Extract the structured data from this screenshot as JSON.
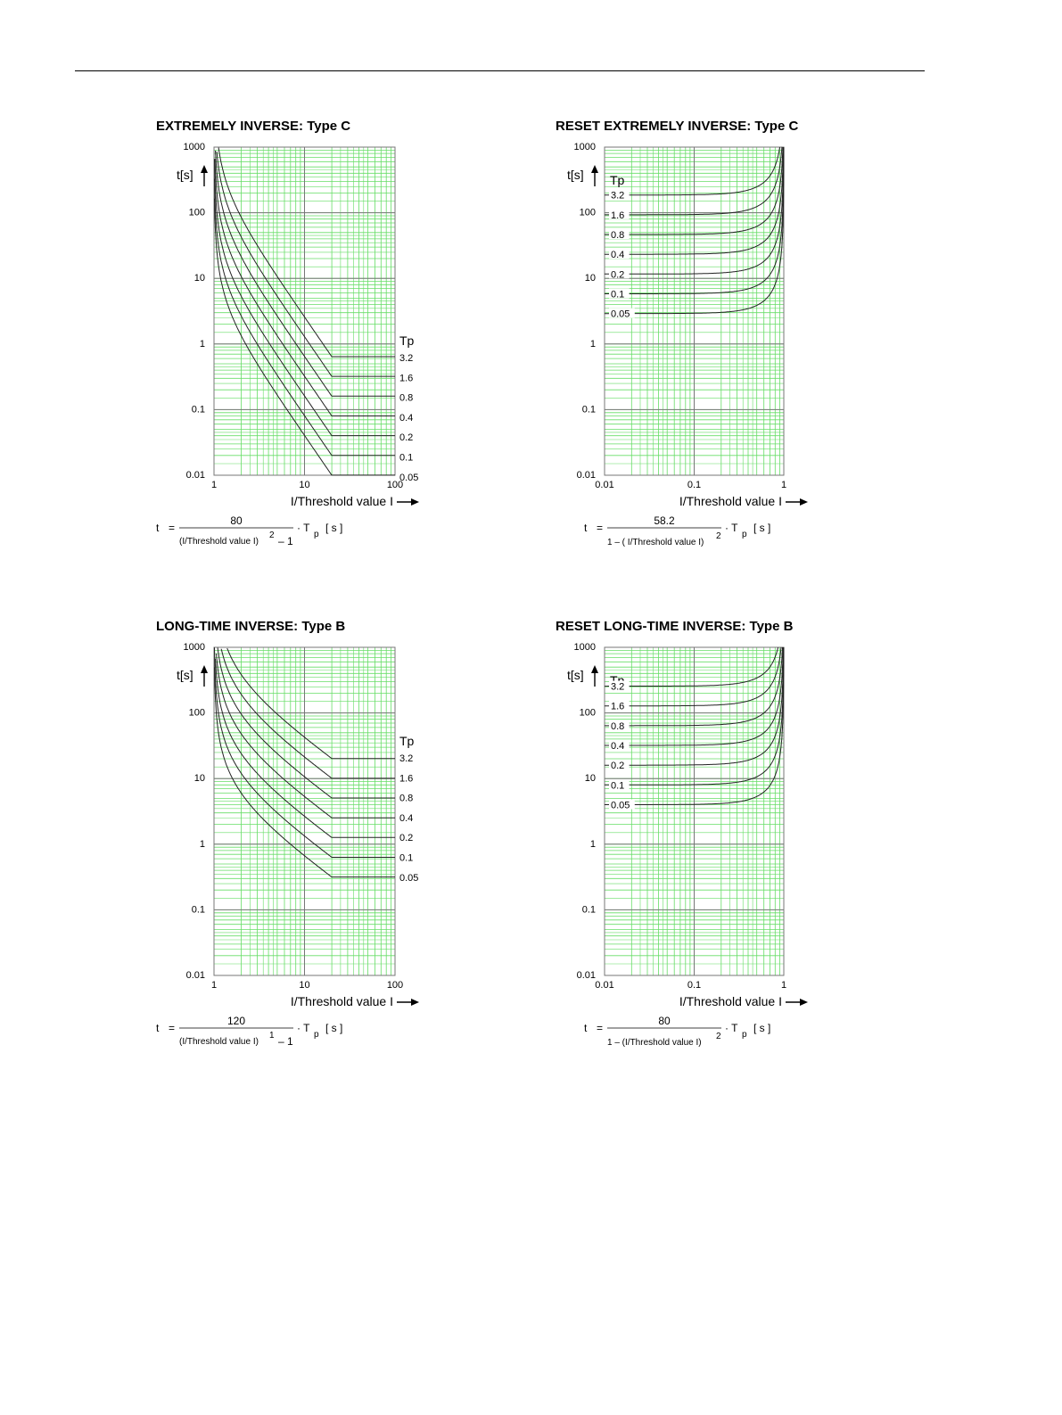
{
  "charts": [
    {
      "id": "ext-inv-c",
      "title": "EXTREMELY INVERSE: Type C",
      "ylabel": "t[s]",
      "xlabel": "I/Threshold value I",
      "curve_legend_title": "Tp",
      "formula": {
        "lhs": "t",
        "eq": "=",
        "numerator": "80",
        "denominator_text": "(I/Threshold value I)",
        "exponent": "2",
        "minus": "– 1",
        "factor": "· T",
        "sub": "p",
        "unit": "[ s ]"
      }
    },
    {
      "id": "reset-ext-inv-c",
      "title": "RESET EXTREMELY INVERSE: Type C",
      "ylabel": "t[s]",
      "xlabel": "I/Threshold value I",
      "curve_legend_title": "Tp",
      "formula": {
        "lhs": "t",
        "eq": "=",
        "numerator": "58.2",
        "one_minus": "1 – ( I/Threshold value I)",
        "exponent": "2",
        "factor": "· T",
        "sub": "p",
        "unit": "[ s ]"
      }
    },
    {
      "id": "long-inv-b",
      "title": "LONG-TIME INVERSE: Type B",
      "ylabel": "t[s]",
      "xlabel": "I/Threshold value I",
      "curve_legend_title": "Tp",
      "formula": {
        "lhs": "t",
        "eq": "=",
        "numerator": "120",
        "denominator_text": "(I/Threshold value I)",
        "exponent": "1",
        "minus": "– 1",
        "factor": "· T",
        "sub": "p",
        "unit": "[ s ]"
      }
    },
    {
      "id": "reset-long-inv-b",
      "title": "RESET LONG-TIME INVERSE: Type B",
      "ylabel": "t[s]",
      "xlabel": "I/Threshold value I",
      "curve_legend_title": "Tp",
      "formula": {
        "lhs": "t",
        "eq": "=",
        "numerator": "80",
        "one_minus": "1 – (I/Threshold value I)",
        "exponent": "2",
        "factor": "· T",
        "sub": "p",
        "unit": "[ s ]"
      }
    }
  ],
  "chart_data": [
    {
      "type": "line",
      "title": "EXTREMELY INVERSE: Type C",
      "xlabel": "I/Threshold value I",
      "ylabel": "t[s]",
      "x_scale": "log",
      "y_scale": "log",
      "xlim": [
        1,
        100
      ],
      "ylim": [
        0.01,
        1000
      ],
      "x_ticks": [
        "1",
        "10",
        "100"
      ],
      "y_ticks": [
        "1000",
        "100",
        "10",
        "1",
        "0.1",
        "0.01"
      ],
      "grid": true,
      "legend_title": "Tp",
      "legend_placement": "right",
      "formula_numerator": 80,
      "formula_exponent": 2,
      "plateau_from_x": 20,
      "series": [
        {
          "name": "3.2",
          "tp": 3.2
        },
        {
          "name": "1.6",
          "tp": 1.6
        },
        {
          "name": "0.8",
          "tp": 0.8
        },
        {
          "name": "0.4",
          "tp": 0.4
        },
        {
          "name": "0.2",
          "tp": 0.2
        },
        {
          "name": "0.1",
          "tp": 0.1
        },
        {
          "name": "0.05",
          "tp": 0.05
        }
      ]
    },
    {
      "type": "line",
      "title": "RESET EXTREMELY INVERSE: Type C",
      "xlabel": "I/Threshold value I",
      "ylabel": "t[s]",
      "x_scale": "log",
      "y_scale": "log",
      "xlim": [
        0.01,
        1
      ],
      "ylim": [
        0.01,
        1000
      ],
      "x_ticks": [
        "0.01",
        "0.1",
        "1"
      ],
      "y_ticks": [
        "1000",
        "100",
        "10",
        "1",
        "0.1",
        "0.01"
      ],
      "grid": true,
      "legend_title": "Tp",
      "legend_placement": "top-left",
      "formula_numerator": 58.2,
      "formula_exponent": 2,
      "series": [
        {
          "name": "3.2",
          "tp": 3.2
        },
        {
          "name": "1.6",
          "tp": 1.6
        },
        {
          "name": "0.8",
          "tp": 0.8
        },
        {
          "name": "0.4",
          "tp": 0.4
        },
        {
          "name": "0.2",
          "tp": 0.2
        },
        {
          "name": "0.1",
          "tp": 0.1
        },
        {
          "name": "0.05",
          "tp": 0.05
        }
      ]
    },
    {
      "type": "line",
      "title": "LONG-TIME INVERSE: Type B",
      "xlabel": "I/Threshold value I",
      "ylabel": "t[s]",
      "x_scale": "log",
      "y_scale": "log",
      "xlim": [
        1,
        100
      ],
      "ylim": [
        0.01,
        1000
      ],
      "x_ticks": [
        "1",
        "10",
        "100"
      ],
      "y_ticks": [
        "1000",
        "100",
        "10",
        "1",
        "0.1",
        "0.01"
      ],
      "grid": true,
      "legend_title": "Tp",
      "legend_placement": "right",
      "formula_numerator": 120,
      "formula_exponent": 1,
      "plateau_from_x": 20,
      "series": [
        {
          "name": "3.2",
          "tp": 3.2
        },
        {
          "name": "1.6",
          "tp": 1.6
        },
        {
          "name": "0.8",
          "tp": 0.8
        },
        {
          "name": "0.4",
          "tp": 0.4
        },
        {
          "name": "0.2",
          "tp": 0.2
        },
        {
          "name": "0.1",
          "tp": 0.1
        },
        {
          "name": "0.05",
          "tp": 0.05
        }
      ]
    },
    {
      "type": "line",
      "title": "RESET LONG-TIME INVERSE: Type B",
      "xlabel": "I/Threshold value I",
      "ylabel": "t[s]",
      "x_scale": "log",
      "y_scale": "log",
      "xlim": [
        0.01,
        1
      ],
      "ylim": [
        0.01,
        1000
      ],
      "x_ticks": [
        "0.01",
        "0.1",
        "1"
      ],
      "y_ticks": [
        "1000",
        "100",
        "10",
        "1",
        "0.1",
        "0.01"
      ],
      "grid": true,
      "legend_title": "Tp",
      "legend_placement": "top-left",
      "formula_numerator": 80,
      "formula_exponent": 2,
      "series": [
        {
          "name": "3.2",
          "tp": 3.2
        },
        {
          "name": "1.6",
          "tp": 1.6
        },
        {
          "name": "0.8",
          "tp": 0.8
        },
        {
          "name": "0.4",
          "tp": 0.4
        },
        {
          "name": "0.2",
          "tp": 0.2
        },
        {
          "name": "0.1",
          "tp": 0.1
        },
        {
          "name": "0.05",
          "tp": 0.05
        }
      ]
    }
  ],
  "colors": {
    "grid_minor": "#66dd66",
    "grid_major": "#777777",
    "curve": "#222222"
  }
}
